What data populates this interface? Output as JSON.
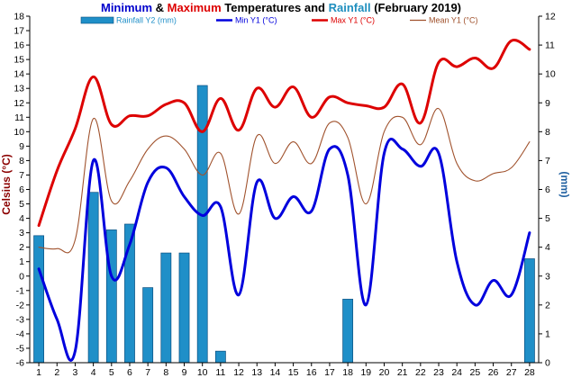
{
  "title_parts": [
    {
      "text": "Minimum",
      "color": "#0000cc"
    },
    {
      "text": " & ",
      "color": "#000000"
    },
    {
      "text": "Maximum",
      "color": "#dd0000"
    },
    {
      "text": " Temperatures and ",
      "color": "#000000"
    },
    {
      "text": "Rainfall",
      "color": "#1f8fbf"
    },
    {
      "text": " (February 2019)",
      "color": "#000000"
    }
  ],
  "chart_data": {
    "type": "bar+line",
    "categories": [
      "1",
      "2",
      "3",
      "4",
      "5",
      "6",
      "7",
      "8",
      "9",
      "10",
      "11",
      "12",
      "13",
      "14",
      "15",
      "16",
      "17",
      "18",
      "19",
      "20",
      "21",
      "22",
      "23",
      "24",
      "25",
      "26",
      "27",
      "28"
    ],
    "ylabel_left": "Celsius (°C)",
    "ylabel_right": "(mm)",
    "ylim_left": [
      -6,
      18
    ],
    "ylim_right": [
      0,
      12
    ],
    "y_ticks_left": [
      -6,
      -5,
      -4,
      -3,
      -2,
      -1,
      0,
      1,
      2,
      3,
      4,
      5,
      6,
      7,
      8,
      9,
      10,
      11,
      12,
      13,
      14,
      15,
      16,
      17,
      18
    ],
    "y_ticks_right": [
      0,
      1,
      2,
      3,
      4,
      5,
      6,
      7,
      8,
      9,
      10,
      11,
      12
    ],
    "grid": false,
    "legend_position": "top",
    "series": [
      {
        "name": "Rainfall Y2 (mm)",
        "type": "bar",
        "axis": "right",
        "color": "#1f8fc8",
        "values": [
          4.4,
          0,
          0,
          5.9,
          4.6,
          4.8,
          2.6,
          3.8,
          3.8,
          9.6,
          0.4,
          0,
          0,
          0,
          0,
          0,
          0,
          2.2,
          0,
          0,
          0,
          0,
          0,
          0,
          0,
          0,
          0,
          3.6
        ]
      },
      {
        "name": "Min Y1 (°C)",
        "type": "line",
        "axis": "left",
        "color": "#0000dd",
        "values": [
          0.5,
          -3.0,
          -5.2,
          8.0,
          0.0,
          2.2,
          6.5,
          7.5,
          5.5,
          4.2,
          4.8,
          -1.3,
          6.5,
          4.0,
          5.5,
          4.5,
          8.8,
          7.0,
          -2.0,
          8.5,
          8.8,
          7.6,
          8.5,
          1.0,
          -2.0,
          -0.3,
          -1.3,
          3.0
        ]
      },
      {
        "name": "Max Y1 (°C)",
        "type": "line",
        "axis": "left",
        "color": "#dd0000",
        "values": [
          3.5,
          7.3,
          10.2,
          13.8,
          10.5,
          11.1,
          11.1,
          11.9,
          12.0,
          10.0,
          12.3,
          10.1,
          13.0,
          11.7,
          13.1,
          11.0,
          12.4,
          12.0,
          11.8,
          11.7,
          13.3,
          10.6,
          14.8,
          14.5,
          15.1,
          14.4,
          16.3,
          15.7
        ]
      },
      {
        "name": "Mean Y1 (°C)",
        "type": "line",
        "axis": "left",
        "color": "#a0522d",
        "values": [
          2.0,
          1.9,
          2.5,
          10.9,
          5.2,
          6.6,
          8.8,
          9.7,
          8.8,
          7.0,
          8.5,
          4.3,
          9.7,
          7.8,
          9.3,
          7.8,
          10.6,
          9.6,
          5.0,
          10.0,
          11.0,
          9.1,
          11.6,
          7.8,
          6.6,
          7.1,
          7.5,
          9.3
        ]
      }
    ]
  }
}
